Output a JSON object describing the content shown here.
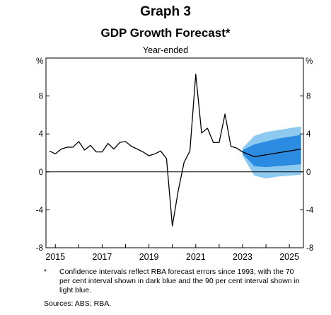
{
  "header": {
    "graph_label": "Graph 3",
    "title": "GDP Growth Forecast*",
    "subtitle": "Year-ended"
  },
  "chart_data": {
    "type": "line",
    "title": "GDP Growth Forecast*",
    "subtitle": "Year-ended",
    "xlabel": "",
    "ylabel": "%",
    "ylabel_right": "%",
    "xlim": [
      2014.6,
      2025.6
    ],
    "ylim": [
      -8,
      12
    ],
    "y_ticks": [
      -8,
      -4,
      0,
      4,
      8
    ],
    "x_ticks": [
      2015,
      2017,
      2019,
      2021,
      2023,
      2025
    ],
    "grid": false,
    "zero_line": true,
    "colors": {
      "line": "#000000",
      "ci70": "#2b8be0",
      "ci90": "#8ec9f0"
    },
    "series": [
      {
        "kind": "actual",
        "x": [
          2014.75,
          2015.0,
          2015.25,
          2015.5,
          2015.75,
          2016.0,
          2016.25,
          2016.5,
          2016.75,
          2017.0,
          2017.25,
          2017.5,
          2017.75,
          2018.0,
          2018.25,
          2018.5,
          2018.75,
          2019.0,
          2019.25,
          2019.5,
          2019.75,
          2020.0,
          2020.25,
          2020.5,
          2020.75,
          2021.0,
          2021.25,
          2021.5,
          2021.75,
          2022.0,
          2022.25,
          2022.5,
          2022.75,
          2023.0
        ],
        "y": [
          2.2,
          1.9,
          2.4,
          2.6,
          2.6,
          3.2,
          2.3,
          2.8,
          2.1,
          2.1,
          3.0,
          2.4,
          3.1,
          3.2,
          2.7,
          2.4,
          2.1,
          1.7,
          1.9,
          2.2,
          1.4,
          -5.7,
          -2.0,
          1.0,
          2.2,
          10.3,
          4.1,
          4.6,
          3.1,
          3.1,
          6.1,
          2.7,
          2.5,
          2.1
        ]
      },
      {
        "kind": "forecast",
        "x": [
          2023.0,
          2023.5,
          2024.0,
          2024.5,
          2025.0,
          2025.5
        ],
        "y": [
          2.1,
          1.6,
          1.8,
          2.0,
          2.2,
          2.4
        ]
      }
    ],
    "bands": {
      "x": [
        2023.0,
        2023.5,
        2024.0,
        2024.5,
        2025.0,
        2025.5
      ],
      "ci70_upper": [
        2.3,
        2.9,
        3.2,
        3.5,
        3.7,
        3.9
      ],
      "ci70_lower": [
        1.9,
        0.6,
        0.5,
        0.6,
        0.7,
        0.8
      ],
      "ci90_upper": [
        2.5,
        3.8,
        4.2,
        4.4,
        4.6,
        4.8
      ],
      "ci90_lower": [
        1.7,
        -0.4,
        -0.7,
        -0.5,
        -0.4,
        -0.3
      ]
    }
  },
  "footnote": {
    "marker": "*",
    "text": "Confidence intervals reflect RBA forecast errors since 1993, with the 70 per cent interval shown in dark blue and the 90 per cent interval shown in light blue."
  },
  "sources": "Sources: ABS; RBA."
}
